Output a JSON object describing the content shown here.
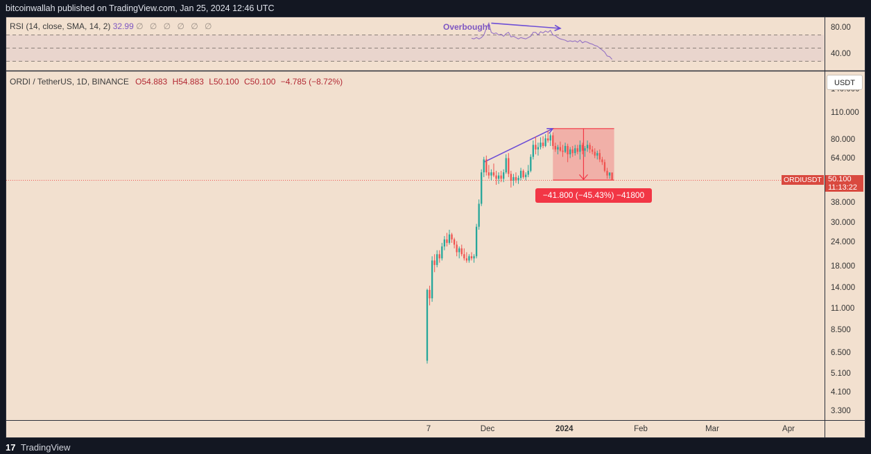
{
  "header": {
    "published_text": "bitcoinwallah published on TradingView.com, Jan 25, 2024 12:46 UTC"
  },
  "rsi_legend": {
    "label": "RSI (14, close, SMA, 14, 2)",
    "value": "32.99",
    "muted": "∅ ∅ ∅ ∅ ∅ ∅"
  },
  "main_legend": {
    "symbol": "ORDI / TetherUS, 1D, BINANCE",
    "open": "O54.883",
    "high": "H54.883",
    "low": "L50.100",
    "close": "C50.100",
    "change": "−4.785 (−8.72%)"
  },
  "annotations": {
    "overbought": "Overbought",
    "measure": "−41.800 (−45.43%) −41800"
  },
  "price_axis": {
    "unit": "USDT",
    "ticks": [
      "140.000",
      "110.000",
      "80.000",
      "64.000",
      "38.000",
      "30.000",
      "24.000",
      "18.000",
      "14.000",
      "11.000",
      "8.500",
      "6.500",
      "5.100",
      "4.100",
      "3.300"
    ],
    "tick_values": [
      140,
      110,
      80,
      64,
      38,
      30,
      24,
      18,
      14,
      11,
      8.5,
      6.5,
      5.1,
      4.1,
      3.3
    ],
    "last_price": "50.100",
    "countdown": "11:13:22",
    "symbol_tag": "ORDIUSDT"
  },
  "rsi_axis": {
    "ticks": [
      "80.00",
      "40.00"
    ],
    "tick_values": [
      80,
      40
    ]
  },
  "time_axis": {
    "labels": [
      "7",
      "Dec",
      "2024",
      "Feb",
      "Mar",
      "Apr"
    ]
  },
  "footer": {
    "brand_mark": "17",
    "brand": "TradingView"
  },
  "colors": {
    "up": "#26a69a",
    "down": "#ef5350",
    "rsi": "#7e57c2",
    "background": "#f2e0cf",
    "measure": "#f23645"
  },
  "chart_data": [
    {
      "type": "candlestick",
      "title": "ORDI / TetherUS, 1D, BINANCE",
      "x_unit": "date",
      "y_scale": "log",
      "ylim": [
        3.0,
        150
      ],
      "candles": [
        {
          "date": "2023-11-07",
          "open": 6.0,
          "high": 14.0,
          "low": 5.8,
          "close": 13.8
        },
        {
          "date": "2023-11-08",
          "open": 13.8,
          "high": 14.5,
          "low": 11.5,
          "close": 12.5
        },
        {
          "date": "2023-11-09",
          "open": 12.5,
          "high": 20.5,
          "low": 12.0,
          "close": 19.5
        },
        {
          "date": "2023-11-10",
          "open": 19.5,
          "high": 21.0,
          "low": 17.0,
          "close": 18.5
        },
        {
          "date": "2023-11-11",
          "open": 18.5,
          "high": 22.0,
          "low": 18.0,
          "close": 21.0
        },
        {
          "date": "2023-11-12",
          "open": 21.0,
          "high": 22.0,
          "low": 19.0,
          "close": 20.0
        },
        {
          "date": "2023-11-13",
          "open": 20.0,
          "high": 24.0,
          "low": 19.5,
          "close": 23.0
        },
        {
          "date": "2023-11-14",
          "open": 23.0,
          "high": 26.0,
          "low": 22.0,
          "close": 25.0
        },
        {
          "date": "2023-11-15",
          "open": 25.0,
          "high": 27.0,
          "low": 23.0,
          "close": 24.0
        },
        {
          "date": "2023-11-16",
          "open": 24.0,
          "high": 28.0,
          "low": 23.5,
          "close": 26.5
        },
        {
          "date": "2023-11-17",
          "open": 26.5,
          "high": 27.0,
          "low": 24.0,
          "close": 25.0
        },
        {
          "date": "2023-11-18",
          "open": 25.0,
          "high": 25.5,
          "low": 22.5,
          "close": 23.5
        },
        {
          "date": "2023-11-19",
          "open": 23.5,
          "high": 24.5,
          "low": 20.5,
          "close": 21.5
        },
        {
          "date": "2023-11-20",
          "open": 21.5,
          "high": 23.0,
          "low": 20.0,
          "close": 22.5
        },
        {
          "date": "2023-11-21",
          "open": 22.5,
          "high": 23.5,
          "low": 20.5,
          "close": 21.0
        },
        {
          "date": "2023-11-22",
          "open": 21.0,
          "high": 22.5,
          "low": 19.5,
          "close": 20.0
        },
        {
          "date": "2023-11-23",
          "open": 20.0,
          "high": 21.5,
          "low": 19.0,
          "close": 19.5
        },
        {
          "date": "2023-11-24",
          "open": 19.5,
          "high": 21.0,
          "low": 19.0,
          "close": 20.5
        },
        {
          "date": "2023-11-25",
          "open": 20.5,
          "high": 21.5,
          "low": 19.5,
          "close": 20.0
        },
        {
          "date": "2023-11-26",
          "open": 20.0,
          "high": 21.0,
          "low": 19.0,
          "close": 20.5
        },
        {
          "date": "2023-11-27",
          "open": 20.5,
          "high": 30.0,
          "low": 20.0,
          "close": 29.0
        },
        {
          "date": "2023-11-28",
          "open": 29.0,
          "high": 40.0,
          "low": 28.0,
          "close": 38.0
        },
        {
          "date": "2023-11-29",
          "open": 38.0,
          "high": 57.0,
          "low": 37.0,
          "close": 55.0
        },
        {
          "date": "2023-11-30",
          "open": 55.0,
          "high": 66.0,
          "low": 52.0,
          "close": 64.0
        },
        {
          "date": "2023-12-01",
          "open": 64.0,
          "high": 67.0,
          "low": 53.0,
          "close": 55.0
        },
        {
          "date": "2023-12-02",
          "open": 55.0,
          "high": 60.0,
          "low": 51.0,
          "close": 53.0
        },
        {
          "date": "2023-12-03",
          "open": 53.0,
          "high": 57.0,
          "low": 50.0,
          "close": 55.0
        },
        {
          "date": "2023-12-04",
          "open": 55.0,
          "high": 61.0,
          "low": 52.0,
          "close": 53.0
        },
        {
          "date": "2023-12-05",
          "open": 53.0,
          "high": 56.0,
          "low": 47.5,
          "close": 51.0
        },
        {
          "date": "2023-12-06",
          "open": 51.0,
          "high": 55.0,
          "low": 48.0,
          "close": 53.0
        },
        {
          "date": "2023-12-07",
          "open": 53.0,
          "high": 56.0,
          "low": 49.0,
          "close": 51.0
        },
        {
          "date": "2023-12-08",
          "open": 51.0,
          "high": 57.0,
          "low": 49.0,
          "close": 55.0
        },
        {
          "date": "2023-12-09",
          "open": 55.0,
          "high": 68.0,
          "low": 54.0,
          "close": 65.0
        },
        {
          "date": "2023-12-10",
          "open": 65.0,
          "high": 69.0,
          "low": 52.0,
          "close": 54.0
        },
        {
          "date": "2023-12-11",
          "open": 54.0,
          "high": 56.0,
          "low": 46.0,
          "close": 50.0
        },
        {
          "date": "2023-12-12",
          "open": 50.0,
          "high": 54.0,
          "low": 47.0,
          "close": 52.0
        },
        {
          "date": "2023-12-13",
          "open": 52.0,
          "high": 55.0,
          "low": 48.5,
          "close": 50.0
        },
        {
          "date": "2023-12-14",
          "open": 50.0,
          "high": 53.0,
          "low": 48.0,
          "close": 51.5
        },
        {
          "date": "2023-12-15",
          "open": 51.5,
          "high": 58.0,
          "low": 50.0,
          "close": 56.0
        },
        {
          "date": "2023-12-16",
          "open": 56.0,
          "high": 57.0,
          "low": 51.0,
          "close": 52.0
        },
        {
          "date": "2023-12-17",
          "open": 52.0,
          "high": 55.0,
          "low": 50.0,
          "close": 53.5
        },
        {
          "date": "2023-12-18",
          "open": 53.5,
          "high": 60.0,
          "low": 52.0,
          "close": 56.0
        },
        {
          "date": "2023-12-19",
          "open": 56.0,
          "high": 68.0,
          "low": 55.0,
          "close": 66.0
        },
        {
          "date": "2023-12-20",
          "open": 66.0,
          "high": 80.0,
          "low": 64.0,
          "close": 76.0
        },
        {
          "date": "2023-12-21",
          "open": 76.0,
          "high": 84.0,
          "low": 68.0,
          "close": 72.0
        },
        {
          "date": "2023-12-22",
          "open": 72.0,
          "high": 78.0,
          "low": 67.0,
          "close": 74.0
        },
        {
          "date": "2023-12-23",
          "open": 74.0,
          "high": 83.0,
          "low": 72.0,
          "close": 78.0
        },
        {
          "date": "2023-12-24",
          "open": 78.0,
          "high": 84.0,
          "low": 73.0,
          "close": 75.0
        },
        {
          "date": "2023-12-25",
          "open": 75.0,
          "high": 86.0,
          "low": 74.0,
          "close": 82.0
        },
        {
          "date": "2023-12-26",
          "open": 82.0,
          "high": 90.0,
          "low": 78.0,
          "close": 80.0
        },
        {
          "date": "2023-12-27",
          "open": 80.0,
          "high": 87.0,
          "low": 75.0,
          "close": 85.0
        },
        {
          "date": "2023-12-28",
          "open": 85.0,
          "high": 88.0,
          "low": 72.0,
          "close": 75.0
        },
        {
          "date": "2023-12-29",
          "open": 75.0,
          "high": 78.0,
          "low": 70.0,
          "close": 72.0
        },
        {
          "date": "2023-12-30",
          "open": 72.0,
          "high": 76.0,
          "low": 68.0,
          "close": 74.0
        },
        {
          "date": "2023-12-31",
          "open": 74.0,
          "high": 79.0,
          "low": 70.0,
          "close": 71.0
        },
        {
          "date": "2024-01-01",
          "open": 71.0,
          "high": 76.0,
          "low": 66.0,
          "close": 70.0
        },
        {
          "date": "2024-01-02",
          "open": 70.0,
          "high": 78.0,
          "low": 69.0,
          "close": 75.0
        },
        {
          "date": "2024-01-03",
          "open": 75.0,
          "high": 77.0,
          "low": 62.0,
          "close": 68.0
        },
        {
          "date": "2024-01-04",
          "open": 68.0,
          "high": 74.0,
          "low": 65.0,
          "close": 72.0
        },
        {
          "date": "2024-01-05",
          "open": 72.0,
          "high": 75.0,
          "low": 66.0,
          "close": 69.0
        },
        {
          "date": "2024-01-06",
          "open": 69.0,
          "high": 76.0,
          "low": 67.0,
          "close": 73.0
        },
        {
          "date": "2024-01-07",
          "open": 73.0,
          "high": 76.0,
          "low": 68.0,
          "close": 70.0
        },
        {
          "date": "2024-01-08",
          "open": 70.0,
          "high": 80.0,
          "low": 64.0,
          "close": 76.0
        },
        {
          "date": "2024-01-09",
          "open": 76.0,
          "high": 78.0,
          "low": 68.0,
          "close": 71.0
        },
        {
          "date": "2024-01-10",
          "open": 71.0,
          "high": 75.0,
          "low": 66.0,
          "close": 73.0
        },
        {
          "date": "2024-01-11",
          "open": 73.0,
          "high": 80.0,
          "low": 70.0,
          "close": 76.0
        },
        {
          "date": "2024-01-12",
          "open": 76.0,
          "high": 78.0,
          "low": 69.0,
          "close": 72.0
        },
        {
          "date": "2024-01-13",
          "open": 72.0,
          "high": 75.0,
          "low": 68.0,
          "close": 70.0
        },
        {
          "date": "2024-01-14",
          "open": 70.0,
          "high": 73.0,
          "low": 65.0,
          "close": 67.0
        },
        {
          "date": "2024-01-15",
          "open": 67.0,
          "high": 71.0,
          "low": 64.0,
          "close": 69.0
        },
        {
          "date": "2024-01-16",
          "open": 69.0,
          "high": 72.0,
          "low": 62.0,
          "close": 64.0
        },
        {
          "date": "2024-01-17",
          "open": 64.0,
          "high": 66.0,
          "low": 60.0,
          "close": 62.0
        },
        {
          "date": "2024-01-18",
          "open": 62.0,
          "high": 64.0,
          "low": 55.0,
          "close": 56.0
        },
        {
          "date": "2024-01-19",
          "open": 56.0,
          "high": 58.0,
          "low": 51.0,
          "close": 53.0
        },
        {
          "date": "2024-01-20",
          "open": 53.0,
          "high": 55.0,
          "low": 51.0,
          "close": 54.883
        },
        {
          "date": "2024-01-21",
          "open": 54.883,
          "high": 54.883,
          "low": 50.1,
          "close": 50.1
        }
      ]
    },
    {
      "type": "line",
      "title": "RSI (14, close, SMA, 14, 2)",
      "x_unit": "date",
      "ylim": [
        20,
        90
      ],
      "series": [
        {
          "values": [
            [
              "2023-11-25",
              65
            ],
            [
              "2023-11-26",
              64
            ],
            [
              "2023-11-27",
              66
            ],
            [
              "2023-11-28",
              64
            ],
            [
              "2023-11-29",
              66
            ],
            [
              "2023-11-30",
              70
            ],
            [
              "2023-12-01",
              80
            ],
            [
              "2023-12-02",
              88
            ],
            [
              "2023-12-03",
              74
            ],
            [
              "2023-12-04",
              72
            ],
            [
              "2023-12-05",
              73
            ],
            [
              "2023-12-06",
              70
            ],
            [
              "2023-12-07",
              71
            ],
            [
              "2023-12-08",
              68
            ],
            [
              "2023-12-09",
              72
            ],
            [
              "2023-12-10",
              74
            ],
            [
              "2023-12-11",
              67
            ],
            [
              "2023-12-12",
              68
            ],
            [
              "2023-12-13",
              66
            ],
            [
              "2023-12-14",
              64
            ],
            [
              "2023-12-15",
              66
            ],
            [
              "2023-12-16",
              65
            ],
            [
              "2023-12-17",
              64
            ],
            [
              "2023-12-18",
              66
            ],
            [
              "2023-12-19",
              68
            ],
            [
              "2023-12-20",
              74
            ],
            [
              "2023-12-21",
              74
            ],
            [
              "2023-12-22",
              70
            ],
            [
              "2023-12-23",
              75
            ],
            [
              "2023-12-24",
              73
            ],
            [
              "2023-12-25",
              76
            ],
            [
              "2023-12-26",
              74
            ],
            [
              "2023-12-27",
              77
            ],
            [
              "2023-12-28",
              70
            ],
            [
              "2023-12-29",
              69
            ],
            [
              "2023-12-30",
              66
            ],
            [
              "2023-12-31",
              64
            ],
            [
              "2024-01-01",
              63
            ],
            [
              "2024-01-02",
              62
            ],
            [
              "2024-01-03",
              60
            ],
            [
              "2024-01-04",
              61
            ],
            [
              "2024-01-05",
              60
            ],
            [
              "2024-01-06",
              61
            ],
            [
              "2024-01-07",
              59
            ],
            [
              "2024-01-08",
              62
            ],
            [
              "2024-01-09",
              58
            ],
            [
              "2024-01-10",
              60
            ],
            [
              "2024-01-11",
              59
            ],
            [
              "2024-01-12",
              57
            ],
            [
              "2024-01-13",
              56
            ],
            [
              "2024-01-14",
              54
            ],
            [
              "2024-01-15",
              53
            ],
            [
              "2024-01-16",
              50
            ],
            [
              "2024-01-17",
              47
            ],
            [
              "2024-01-18",
              44
            ],
            [
              "2024-01-19",
              38
            ],
            [
              "2024-01-20",
              37
            ],
            [
              "2024-01-21",
              33
            ]
          ]
        }
      ]
    }
  ],
  "measure_tool": {
    "from_date": "2023-12-28",
    "to_date": "2024-01-21",
    "from_price": 92.0,
    "to_price": 50.2
  },
  "trend_lines": [
    {
      "pane": "price",
      "from": [
        "2023-11-30",
        62
      ],
      "to": [
        "2023-12-28",
        92
      ]
    },
    {
      "pane": "rsi",
      "from": [
        "2023-12-03",
        88
      ],
      "to": [
        "2023-12-31",
        80
      ]
    }
  ]
}
